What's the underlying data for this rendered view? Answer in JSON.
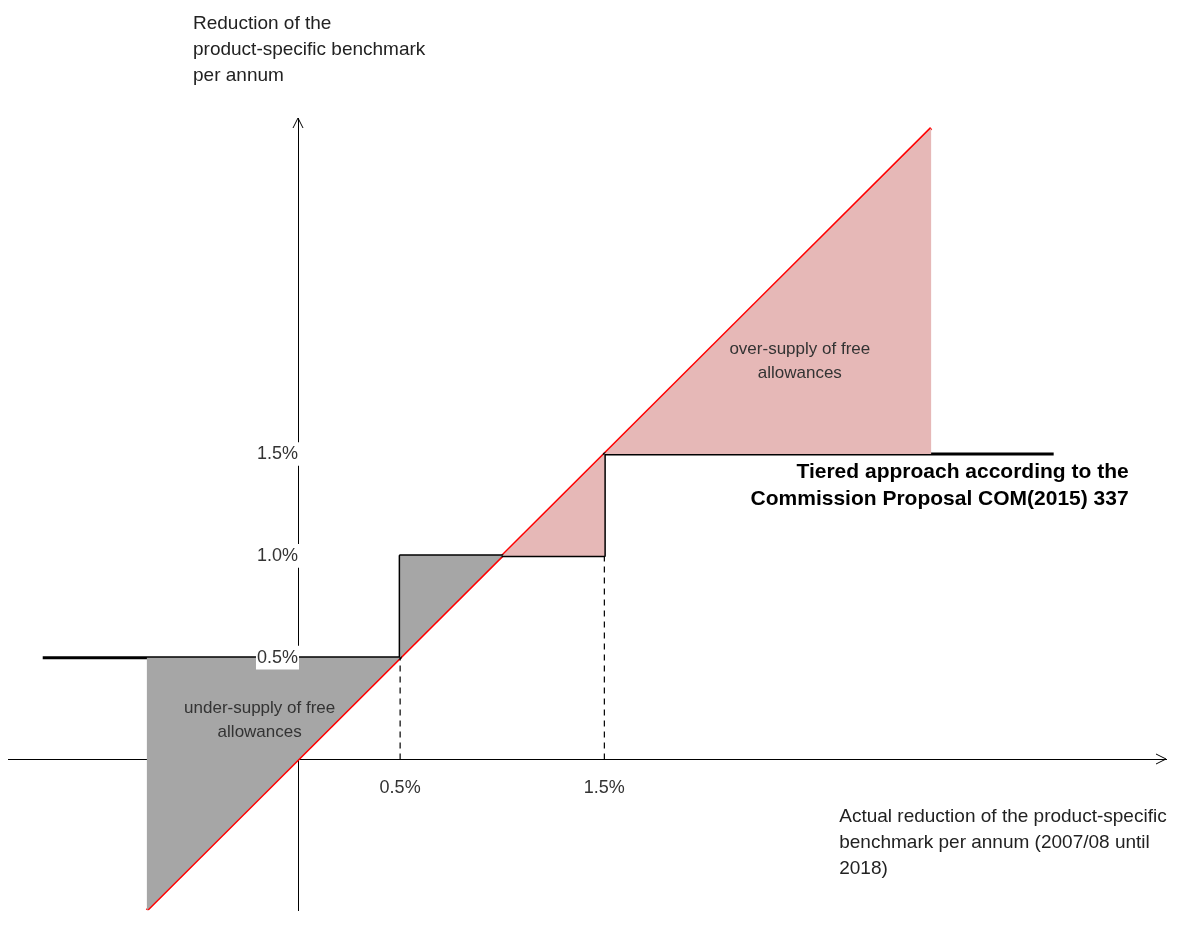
{
  "chart_data": {
    "type": "line",
    "xlabel": "Actual reduction of the product-specific benchmark per annum (2007/08 until 2018)",
    "ylabel": "Reduction of the product-specific benchmark per annum",
    "xlim": [
      -1.42,
      4.25
    ],
    "ylim": [
      -0.74,
      3.15
    ],
    "xticks": [
      {
        "value": 0.5,
        "label": "0.5%"
      },
      {
        "value": 1.5,
        "label": "1.5%"
      }
    ],
    "yticks": [
      {
        "value": 0.5,
        "label": "0.5%"
      },
      {
        "value": 1.0,
        "label": "1.0%"
      },
      {
        "value": 1.5,
        "label": "1.5%"
      }
    ],
    "grid": false,
    "legend": false,
    "series": [
      {
        "type": "area",
        "color": "#a6a6a6",
        "x": [
          -0.74,
          0.5,
          0.5,
          1.0,
          -0.74
        ],
        "values": [
          0.5,
          0.5,
          1.0,
          1.0,
          -0.74
        ]
      },
      {
        "type": "area",
        "color": "#e6b8b7",
        "x": [
          1.0,
          1.5,
          1.5,
          3.1,
          3.1
        ],
        "values": [
          1.0,
          1.0,
          1.5,
          1.5,
          3.1
        ]
      },
      {
        "type": "line",
        "color": "#000000",
        "x": [
          0.5,
          0.5
        ],
        "values": [
          0,
          0.5
        ],
        "line_style": "dashed"
      },
      {
        "type": "line",
        "color": "#000000",
        "x": [
          1.5,
          1.5
        ],
        "values": [
          0,
          1.5
        ],
        "line_style": "dashed"
      },
      {
        "name": "Tiered approach according to the Commission Proposal COM(2015) 337",
        "color": "#000000",
        "x": [
          -1.25,
          0.5,
          0.5,
          1.5,
          1.5,
          3.7
        ],
        "values": [
          0.5,
          0.5,
          1.0,
          1.0,
          1.5,
          1.5
        ]
      },
      {
        "type": "line",
        "color": "#ff0000",
        "x": [
          -0.74,
          3.1
        ],
        "values": [
          -0.74,
          3.1
        ]
      }
    ],
    "annotations": [
      "under-supply of free allowances",
      "over-supply of free allowances"
    ]
  }
}
